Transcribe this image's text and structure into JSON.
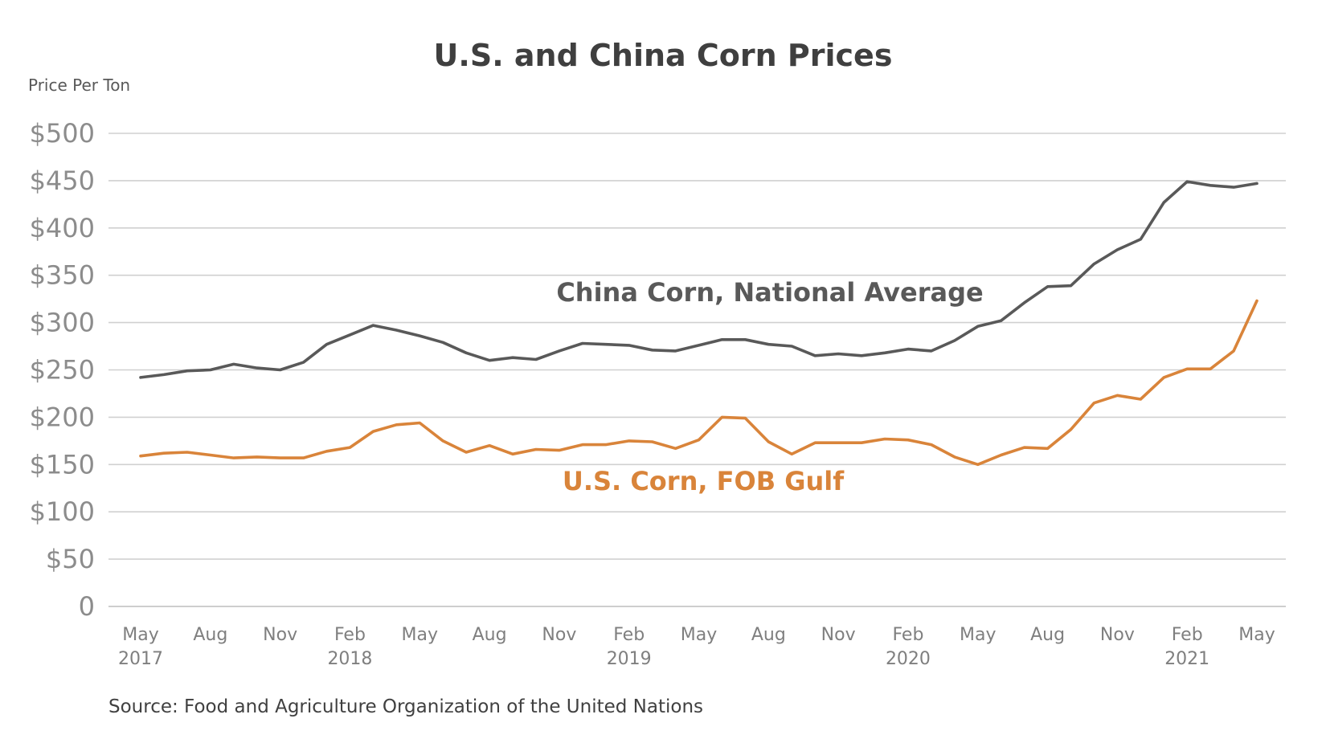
{
  "chart_data": {
    "type": "line",
    "title": "U.S. and China Corn Prices",
    "ylabel": "Price Per Ton",
    "xlabel": "",
    "ylim": [
      0,
      500
    ],
    "y_ticks": [
      "0",
      "$50",
      "$100",
      "$150",
      "$200",
      "$250",
      "$300",
      "$350",
      "$400",
      "$450",
      "$500"
    ],
    "y_tick_values": [
      0,
      50,
      100,
      150,
      200,
      250,
      300,
      350,
      400,
      450,
      500
    ],
    "x_ticks": [
      {
        "month": "May",
        "year": "2017",
        "index": 0
      },
      {
        "month": "Aug",
        "year": "",
        "index": 3
      },
      {
        "month": "Nov",
        "year": "",
        "index": 6
      },
      {
        "month": "Feb",
        "year": "2018",
        "index": 9
      },
      {
        "month": "May",
        "year": "",
        "index": 12
      },
      {
        "month": "Aug",
        "year": "",
        "index": 15
      },
      {
        "month": "Nov",
        "year": "",
        "index": 18
      },
      {
        "month": "Feb",
        "year": "2019",
        "index": 21
      },
      {
        "month": "May",
        "year": "",
        "index": 24
      },
      {
        "month": "Aug",
        "year": "",
        "index": 27
      },
      {
        "month": "Nov",
        "year": "",
        "index": 30
      },
      {
        "month": "Feb",
        "year": "2020",
        "index": 33
      },
      {
        "month": "May",
        "year": "",
        "index": 36
      },
      {
        "month": "Aug",
        "year": "",
        "index": 39
      },
      {
        "month": "Nov",
        "year": "",
        "index": 42
      },
      {
        "month": "Feb",
        "year": "2021",
        "index": 45
      },
      {
        "month": "May",
        "year": "",
        "index": 48
      }
    ],
    "x": [
      "May 2017",
      "Jun 2017",
      "Jul 2017",
      "Aug 2017",
      "Sep 2017",
      "Oct 2017",
      "Nov 2017",
      "Dec 2017",
      "Jan 2018",
      "Feb 2018",
      "Mar 2018",
      "Apr 2018",
      "May 2018",
      "Jun 2018",
      "Jul 2018",
      "Aug 2018",
      "Sep 2018",
      "Oct 2018",
      "Nov 2018",
      "Dec 2018",
      "Jan 2019",
      "Feb 2019",
      "Mar 2019",
      "Apr 2019",
      "May 2019",
      "Jun 2019",
      "Jul 2019",
      "Aug 2019",
      "Sep 2019",
      "Oct 2019",
      "Nov 2019",
      "Dec 2019",
      "Jan 2020",
      "Feb 2020",
      "Mar 2020",
      "Apr 2020",
      "May 2020",
      "Jun 2020",
      "Jul 2020",
      "Aug 2020",
      "Sep 2020",
      "Oct 2020",
      "Nov 2020",
      "Dec 2020",
      "Jan 2021",
      "Feb 2021",
      "Mar 2021",
      "Apr 2021",
      "May 2021"
    ],
    "series": [
      {
        "name": "China Corn, National Average",
        "label_position": "middle",
        "color": "#595959",
        "values": [
          242,
          245,
          249,
          250,
          256,
          252,
          250,
          258,
          277,
          287,
          297,
          292,
          286,
          279,
          268,
          260,
          263,
          261,
          270,
          278,
          277,
          276,
          271,
          270,
          276,
          282,
          282,
          277,
          275,
          265,
          267,
          265,
          268,
          272,
          270,
          281,
          296,
          302,
          321,
          338,
          339,
          362,
          377,
          388,
          427,
          449,
          445,
          443,
          447
        ]
      },
      {
        "name": "U.S. Corn, FOB Gulf",
        "label_position": "lower-middle",
        "color": "#d9843a",
        "values": [
          159,
          162,
          163,
          160,
          157,
          158,
          157,
          157,
          164,
          168,
          185,
          192,
          194,
          175,
          163,
          170,
          161,
          166,
          165,
          171,
          171,
          175,
          174,
          167,
          176,
          200,
          199,
          174,
          161,
          173,
          173,
          173,
          177,
          176,
          171,
          158,
          150,
          160,
          168,
          167,
          187,
          215,
          223,
          219,
          242,
          251,
          251,
          270,
          323
        ]
      }
    ]
  },
  "source_note": "Source: Food and Agriculture Organization of the United Nations",
  "colors": {
    "grid": "#d0d0d0",
    "axis_text": "#8c8c8c",
    "title": "#3f3f3f"
  }
}
